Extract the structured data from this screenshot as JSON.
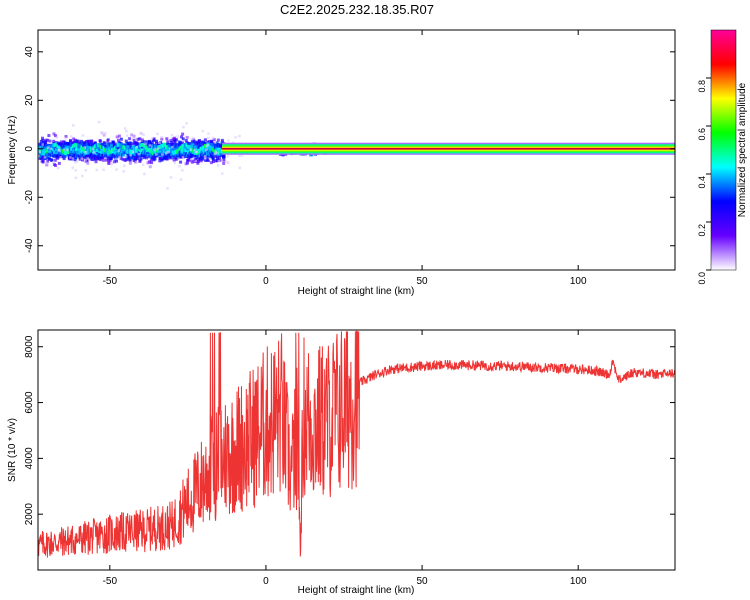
{
  "title": "C2E2.2025.232.18.35.R07",
  "chart_data": [
    {
      "type": "heatmap",
      "title": "C2E2.2025.232.18.35.R07",
      "xlabel": "Height of straight line (km)",
      "ylabel": "Frequency (Hz)",
      "xlim": [
        -73,
        131
      ],
      "ylim": [
        -50,
        49
      ],
      "xticks": [
        -50,
        0,
        50,
        100
      ],
      "xtick_labels": [
        "-50",
        "0",
        "50",
        "100"
      ],
      "yticks": [
        -40,
        -20,
        0,
        20,
        40
      ],
      "ytick_labels": [
        "-40",
        "-20",
        "0",
        "20",
        "40"
      ],
      "tone": {
        "frequency": 0,
        "x_range": [
          -14,
          131
        ],
        "band_halfwidth": 2.5
      },
      "noise_region": {
        "x_range": [
          -73,
          -14
        ],
        "spread": 6
      },
      "burst_region": {
        "x_range": [
          3,
          19
        ],
        "spread": 3
      },
      "colorbar": {
        "label": "Normalized spectral amplitude",
        "range": [
          0,
          1
        ],
        "ticks": [
          0.0,
          0.2,
          0.4,
          0.6,
          0.8
        ],
        "tick_labels": [
          "0.0",
          "0.2",
          "0.4",
          "0.6",
          "0.8"
        ],
        "colors": [
          "#ffffff",
          "#6600ff",
          "#0000ff",
          "#00ffff",
          "#00ff00",
          "#ffff00",
          "#ff0000",
          "#ff0099"
        ]
      }
    },
    {
      "type": "line",
      "xlabel": "Height of straight line (km)",
      "ylabel": "SNR (10 * v/v)",
      "xlim": [
        -73,
        131
      ],
      "ylim": [
        0,
        8600
      ],
      "xticks": [
        -50,
        0,
        50,
        100
      ],
      "xtick_labels": [
        "-50",
        "0",
        "50",
        "100"
      ],
      "yticks": [
        2000,
        4000,
        6000,
        8000
      ],
      "ytick_labels": [
        "2000",
        "4000",
        "6000",
        "8000"
      ],
      "color": "#ee3333",
      "x": [
        -73,
        -60,
        -50,
        -40,
        -30,
        -25,
        -20,
        -15,
        -10,
        -5,
        0,
        5,
        8,
        10,
        11,
        12,
        15,
        20,
        25,
        30,
        35,
        40,
        50,
        60,
        80,
        100,
        105,
        110,
        111,
        113,
        118,
        125,
        131
      ],
      "values": [
        900,
        1100,
        1300,
        1400,
        1600,
        2400,
        3200,
        4000,
        4300,
        4700,
        5200,
        5600,
        3500,
        4800,
        1000,
        5600,
        5200,
        5400,
        5900,
        6700,
        7000,
        7200,
        7300,
        7350,
        7300,
        7200,
        7150,
        7000,
        7500,
        6800,
        7100,
        7000,
        7050
      ]
    }
  ]
}
